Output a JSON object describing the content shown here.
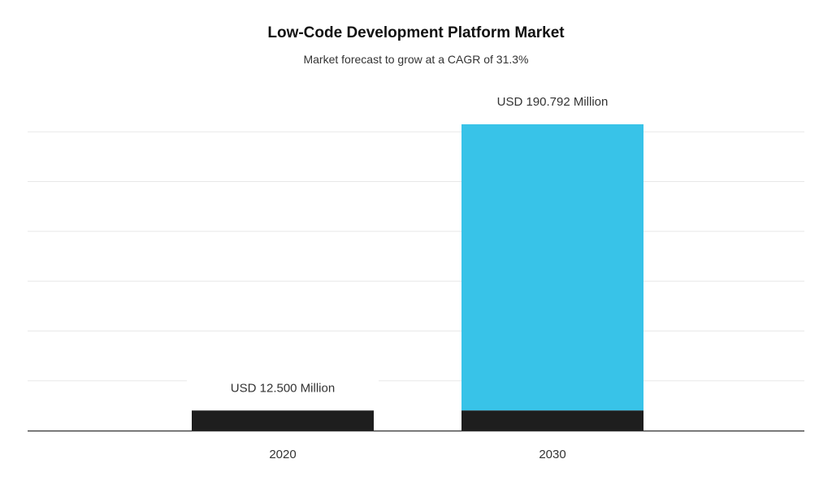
{
  "chart_data": {
    "type": "bar",
    "title": "Low-Code Development Platform Market",
    "subtitle": "Market forecast to grow at a CAGR of 31.3%",
    "xlabel": "",
    "ylabel": "",
    "categories": [
      "2020",
      "2030"
    ],
    "values": [
      12.5,
      190.792
    ],
    "base_value": 12.5,
    "data_labels": [
      "USD 12.500 Million",
      "USD 190.792 Million"
    ],
    "ylim": [
      0,
      200
    ],
    "grid": true,
    "legend": "none",
    "colors": {
      "base": "#1e1e1e",
      "growth": "#38c3e8",
      "grid": "#e8e8e8",
      "axis": "#333333"
    }
  }
}
